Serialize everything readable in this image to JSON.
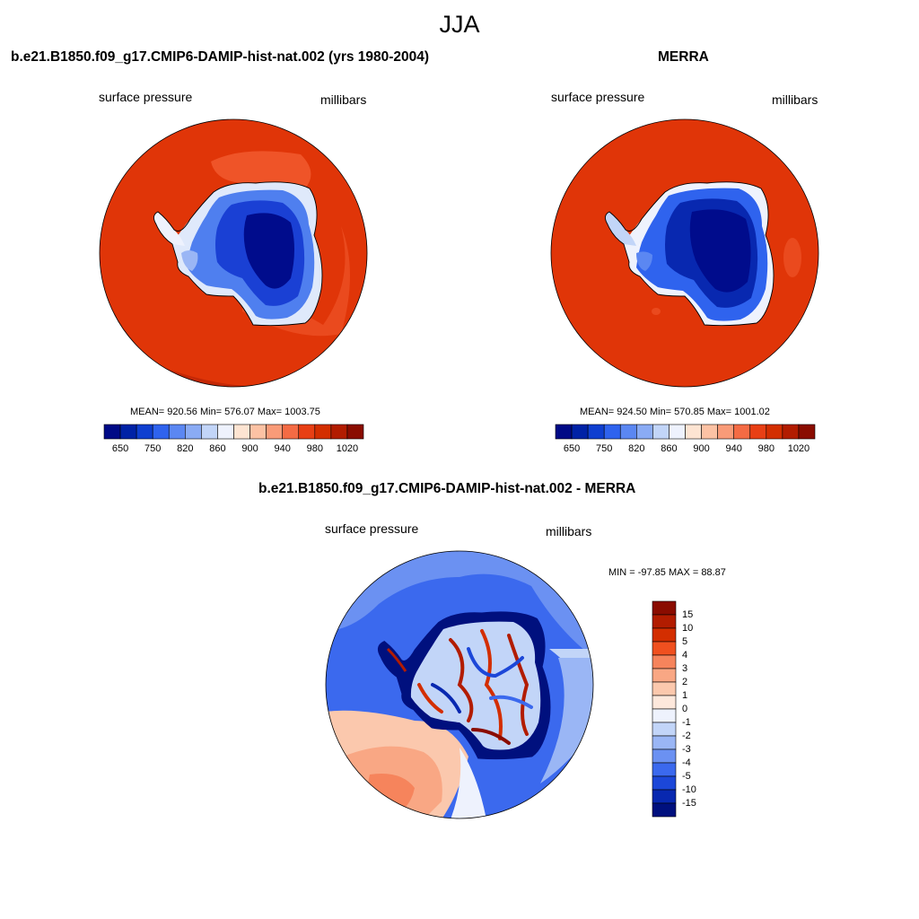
{
  "figure": {
    "title": "JJA"
  },
  "panels": [
    {
      "title": "b.e21.B1850.f09_g17.CMIP6-DAMIP-hist-nat.002 (yrs 1980-2004)",
      "left_label": "surface pressure",
      "right_label": "millibars",
      "stats": "MEAN= 920.56  Min= 576.07  Max= 1003.75",
      "colorbar": {
        "ticks": [
          "650",
          "750",
          "820",
          "860",
          "900",
          "940",
          "980",
          "1020"
        ],
        "colors": [
          "#000a86",
          "#0022a6",
          "#0f3fd0",
          "#2f63ee",
          "#5b87f2",
          "#8aabf4",
          "#c2d5f8",
          "#eef2fd",
          "#fde4d2",
          "#fcc2a4",
          "#f99b78",
          "#f46b44",
          "#e83f14",
          "#d32e00",
          "#b21c00",
          "#8a0c00"
        ]
      }
    },
    {
      "title": "MERRA",
      "left_label": "surface pressure",
      "right_label": "millibars",
      "stats": "MEAN= 924.50  Min= 570.85  Max= 1001.02",
      "colorbar": {
        "ticks": [
          "650",
          "750",
          "820",
          "860",
          "900",
          "940",
          "980",
          "1020"
        ],
        "colors": [
          "#000a86",
          "#0022a6",
          "#0f3fd0",
          "#2f63ee",
          "#5b87f2",
          "#8aabf4",
          "#c2d5f8",
          "#eef2fd",
          "#fde4d2",
          "#fcc2a4",
          "#f99b78",
          "#f46b44",
          "#e83f14",
          "#d32e00",
          "#b21c00",
          "#8a0c00"
        ]
      }
    },
    {
      "title": "b.e21.B1850.f09_g17.CMIP6-DAMIP-hist-nat.002 - MERRA",
      "left_label": "surface pressure",
      "right_label": "millibars",
      "stats": "MIN = -97.85 MAX =  88.87",
      "colorbar": {
        "ticks": [
          "15",
          "10",
          "5",
          "4",
          "3",
          "2",
          "1",
          "0",
          "-1",
          "-2",
          "-3",
          "-4",
          "-5",
          "-10",
          "-15"
        ],
        "colors": [
          "#8a0c00",
          "#b21c00",
          "#d32e00",
          "#f0501f",
          "#f6845c",
          "#f9a784",
          "#fbc8ad",
          "#fde8dc",
          "#eef2fd",
          "#c2d5f8",
          "#9ab6f5",
          "#6b91f2",
          "#3b69ee",
          "#1c47d8",
          "#0828b0",
          "#00107e"
        ]
      }
    }
  ]
}
